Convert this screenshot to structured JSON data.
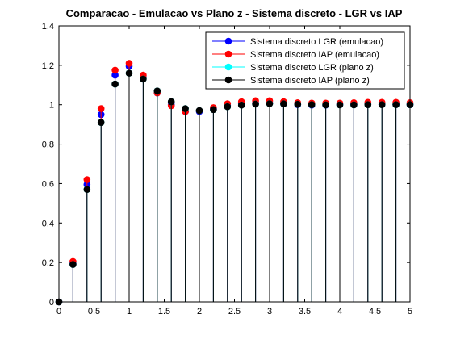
{
  "chart_data": {
    "type": "scatter",
    "title": "Comparacao - Emulacao vs Plano z - Sistema discreto - LGR vs IAP",
    "xlabel": "",
    "ylabel": "",
    "xlim": [
      0,
      5
    ],
    "ylim": [
      0,
      1.4
    ],
    "xticks": [
      0,
      0.5,
      1,
      1.5,
      2,
      2.5,
      3,
      3.5,
      4,
      4.5,
      5
    ],
    "xtick_labels": [
      "0",
      "0.5",
      "1",
      "1.5",
      "2",
      "2.5",
      "3",
      "3.5",
      "4",
      "4.5",
      "5"
    ],
    "yticks": [
      0,
      0.2,
      0.4,
      0.6,
      0.8,
      1,
      1.2,
      1.4
    ],
    "ytick_labels": [
      "0",
      "0.2",
      "0.4",
      "0.6",
      "0.8",
      "1",
      "1.2",
      "1.4"
    ],
    "grid": false,
    "legend_position": "top-right",
    "x": [
      0,
      0.2,
      0.4,
      0.6,
      0.8,
      1.0,
      1.2,
      1.4,
      1.6,
      1.8,
      2.0,
      2.2,
      2.4,
      2.6,
      2.8,
      3.0,
      3.2,
      3.4,
      3.6,
      3.8,
      4.0,
      4.2,
      4.4,
      4.6,
      4.8,
      5.0
    ],
    "series": [
      {
        "name": "Sistema discreto LGR (emulacao)",
        "color": "#0000ff",
        "values": [
          0,
          0.195,
          0.595,
          0.95,
          1.15,
          1.195,
          1.14,
          1.06,
          1.0,
          0.965,
          0.965,
          0.98,
          0.995,
          1.005,
          1.01,
          1.01,
          1.005,
          1.0,
          0.998,
          0.998,
          1.0,
          1.002,
          1.003,
          1.002,
          1.001,
          1.0
        ]
      },
      {
        "name": "Sistema discreto IAP (emulacao)",
        "color": "#ff0000",
        "values": [
          0,
          0.205,
          0.62,
          0.98,
          1.175,
          1.21,
          1.15,
          1.06,
          0.995,
          0.965,
          0.97,
          0.985,
          1.005,
          1.015,
          1.02,
          1.02,
          1.015,
          1.01,
          1.008,
          1.008,
          1.008,
          1.01,
          1.012,
          1.012,
          1.012,
          1.01
        ]
      },
      {
        "name": "Sistema discreto LGR (plano z)",
        "color": "#00ffff",
        "values": [
          0,
          0.19,
          0.57,
          0.91,
          1.105,
          1.16,
          1.13,
          1.07,
          1.015,
          0.98,
          0.97,
          0.975,
          0.99,
          0.998,
          1.003,
          1.005,
          1.004,
          1.002,
          1.0,
          0.999,
          0.999,
          0.999,
          1.0,
          1.0,
          1.0,
          1.0
        ]
      },
      {
        "name": "Sistema discreto IAP (plano z)",
        "color": "#000000",
        "values": [
          0,
          0.19,
          0.57,
          0.91,
          1.105,
          1.16,
          1.13,
          1.07,
          1.015,
          0.98,
          0.97,
          0.975,
          0.99,
          0.998,
          1.003,
          1.005,
          1.004,
          1.002,
          1.0,
          0.999,
          0.999,
          0.999,
          1.0,
          1.0,
          1.0,
          1.0
        ]
      }
    ]
  }
}
